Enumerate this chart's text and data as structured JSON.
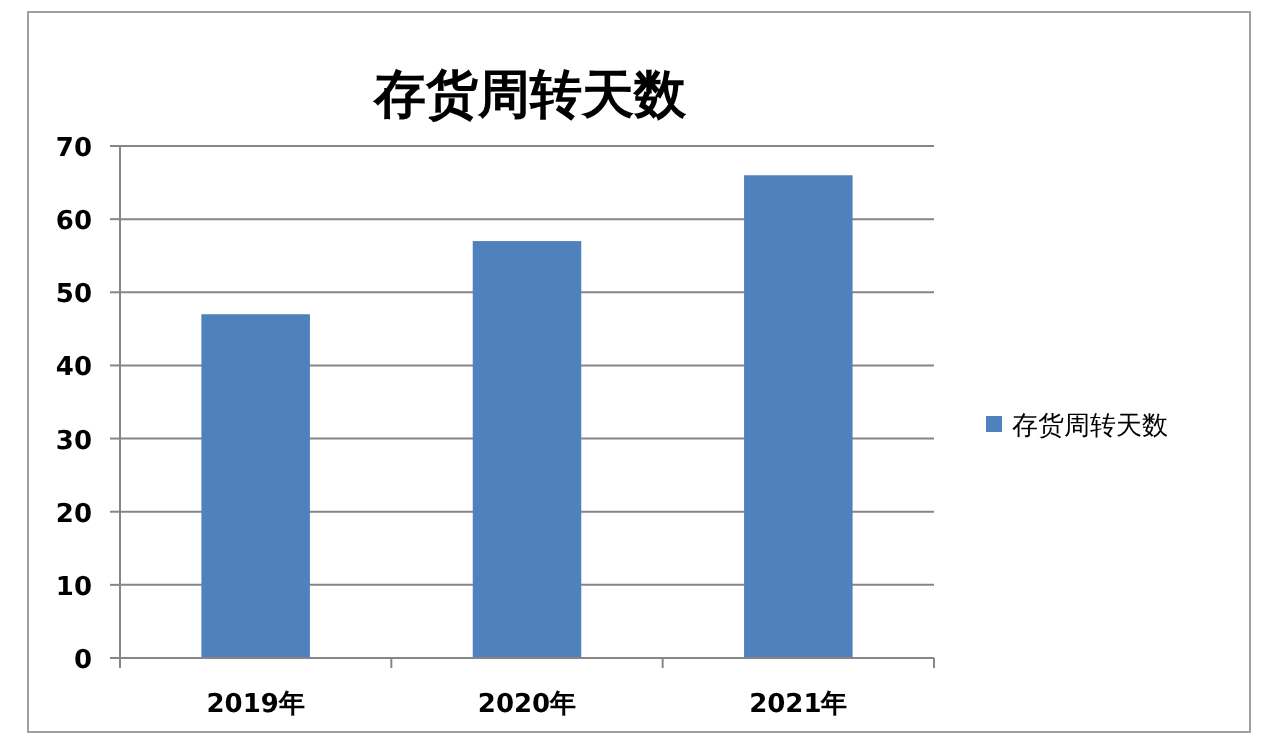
{
  "chart_data": {
    "type": "bar",
    "title": "存货周转天数",
    "categories": [
      "2019年",
      "2020年",
      "2021年"
    ],
    "series": [
      {
        "name": "存货周转天数",
        "color": "#4f81bd",
        "values": [
          47,
          57,
          66
        ]
      }
    ],
    "ylim": [
      0,
      70
    ],
    "yticks": [
      0,
      10,
      20,
      30,
      40,
      50,
      60,
      70
    ],
    "grid": "y",
    "legend": "right"
  }
}
